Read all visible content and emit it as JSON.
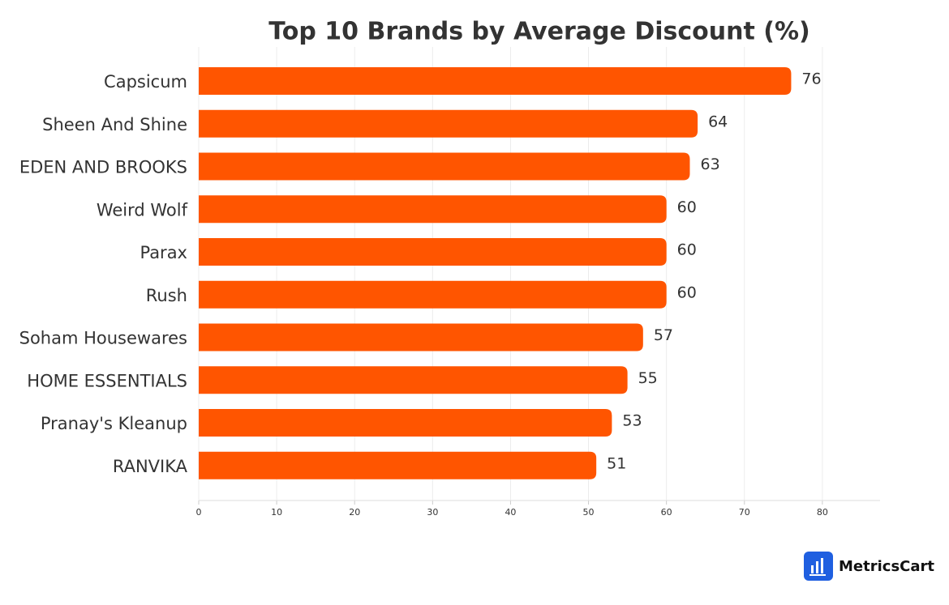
{
  "chart_data": {
    "type": "hbar",
    "title": "Top 10 Brands by Average Discount (%)",
    "categories": [
      "Capsicum",
      "Sheen And Shine",
      "EDEN AND BROOKS",
      "Weird Wolf",
      "Parax",
      "Rush",
      "Soham Housewares",
      "HOME ESSENTIALS",
      "Pranay's Kleanup",
      "RANVIKA"
    ],
    "values": [
      76,
      64,
      63,
      60,
      60,
      60,
      57,
      55,
      53,
      51
    ],
    "color": "#ff5500",
    "xlim": [
      0,
      87.4
    ],
    "xticks": [
      0,
      10,
      20,
      30,
      40,
      50,
      60,
      70,
      80
    ],
    "grid": true
  },
  "footer": {
    "logo_text": "MetricsCart"
  }
}
